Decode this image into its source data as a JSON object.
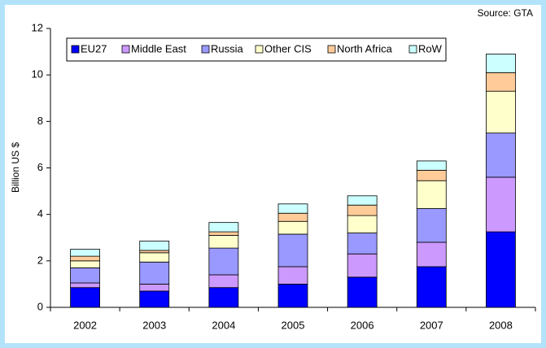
{
  "chart_data": {
    "type": "stacked_bar",
    "source": "Source: GTA",
    "ylabel": "Billion US $",
    "categories": [
      "2002",
      "2003",
      "2004",
      "2005",
      "2006",
      "2007",
      "2008"
    ],
    "series": [
      {
        "name": "EU27",
        "color": "#0000ff",
        "values": [
          0.85,
          0.7,
          0.85,
          1.0,
          1.3,
          1.75,
          3.25
        ]
      },
      {
        "name": "Middle East",
        "color": "#cc99ff",
        "values": [
          0.2,
          0.3,
          0.55,
          0.75,
          1.0,
          1.05,
          2.35
        ]
      },
      {
        "name": "Russia",
        "color": "#9999ff",
        "values": [
          0.65,
          0.95,
          1.15,
          1.4,
          0.9,
          1.45,
          1.9
        ]
      },
      {
        "name": "Other CIS",
        "color": "#ffffcc",
        "values": [
          0.3,
          0.4,
          0.55,
          0.55,
          0.75,
          1.2,
          1.8
        ]
      },
      {
        "name": "North Africa",
        "color": "#ffcc99",
        "values": [
          0.2,
          0.1,
          0.15,
          0.35,
          0.45,
          0.45,
          0.8
        ]
      },
      {
        "name": "RoW",
        "color": "#ccffff",
        "values": [
          0.3,
          0.4,
          0.4,
          0.4,
          0.4,
          0.4,
          0.8
        ]
      }
    ],
    "ylim": [
      0,
      12
    ],
    "yticks": [
      0,
      2,
      4,
      6,
      8,
      10,
      12
    ],
    "legend": "top-left"
  }
}
